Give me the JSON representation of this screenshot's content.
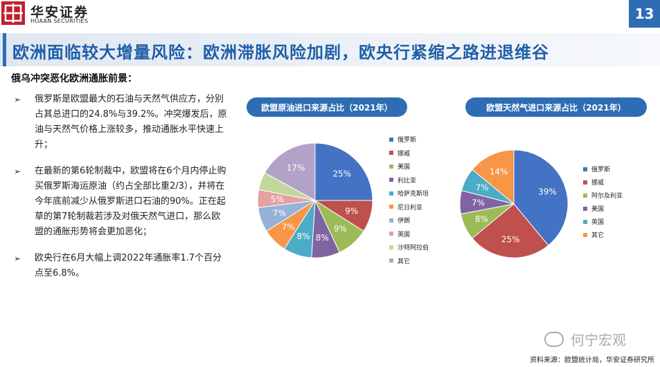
{
  "header": {
    "logo_name": "华安证券",
    "logo_sub": "HUAAN SECURITIES",
    "page_number": "13"
  },
  "title": "欧洲面临较大增量风险：欧洲滞胀风险加剧，欧央行紧缩之路进退维谷",
  "subheading": "俄乌冲突恶化欧洲通胀前景：",
  "bullets": [
    "俄罗斯是欧盟最大的石油与天然气供应方，分别占其总进口的24.8%与39.2%。冲突爆发后，原油与天然气价格上涨较多，推动通胀水平快速上升；",
    "在最新的第6轮制裁中，欧盟将在6个月内停止购买俄罗斯海运原油（约占全部比重2/3），并将在今年底前减少从俄罗斯进口石油的90%。正在起草的第7轮制裁若涉及对俄天然气进口，那么欧盟的通胀形势将会更加恶化；",
    "欧央行在6月大幅上调2022年通胀率1.7个百分点至6.8%。"
  ],
  "bullet_marker": "➢",
  "chart_data": [
    {
      "type": "pie",
      "title": "欧盟原油进口来源占比（2021年）",
      "categories": [
        "俄罗斯",
        "挪威",
        "美国",
        "利比亚",
        "哈萨克斯坦",
        "尼日利亚",
        "伊朗",
        "英国",
        "沙特阿拉伯",
        "其它"
      ],
      "values": [
        25,
        9,
        9,
        8,
        8,
        7,
        7,
        5,
        5,
        17
      ],
      "labels": [
        "25%",
        "9%",
        "9%",
        "8%",
        "8%",
        "7%",
        "7%",
        "5%",
        "",
        "17%"
      ],
      "colors": [
        "#4472c4",
        "#c0504d",
        "#9bbb59",
        "#8064a2",
        "#4bacc6",
        "#f79646",
        "#95b3d7",
        "#e6a0a0",
        "#c3d69b",
        "#b3a2c7"
      ]
    },
    {
      "type": "pie",
      "title": "欧盟天然气进口来源占比（2021年）",
      "categories": [
        "俄罗斯",
        "挪威",
        "阿尔及利亚",
        "美国",
        "英国",
        "其它"
      ],
      "values": [
        39,
        25,
        8,
        7,
        7,
        14
      ],
      "labels": [
        "39%",
        "25%",
        "8%",
        "7%",
        "7%",
        "14%"
      ],
      "colors": [
        "#4472c4",
        "#c0504d",
        "#9bbb59",
        "#8064a2",
        "#4bacc6",
        "#f79646"
      ]
    }
  ],
  "footer": {
    "wechat": "何宁宏观",
    "source": "资料来源：欧盟统计局，华安证券研究所"
  }
}
